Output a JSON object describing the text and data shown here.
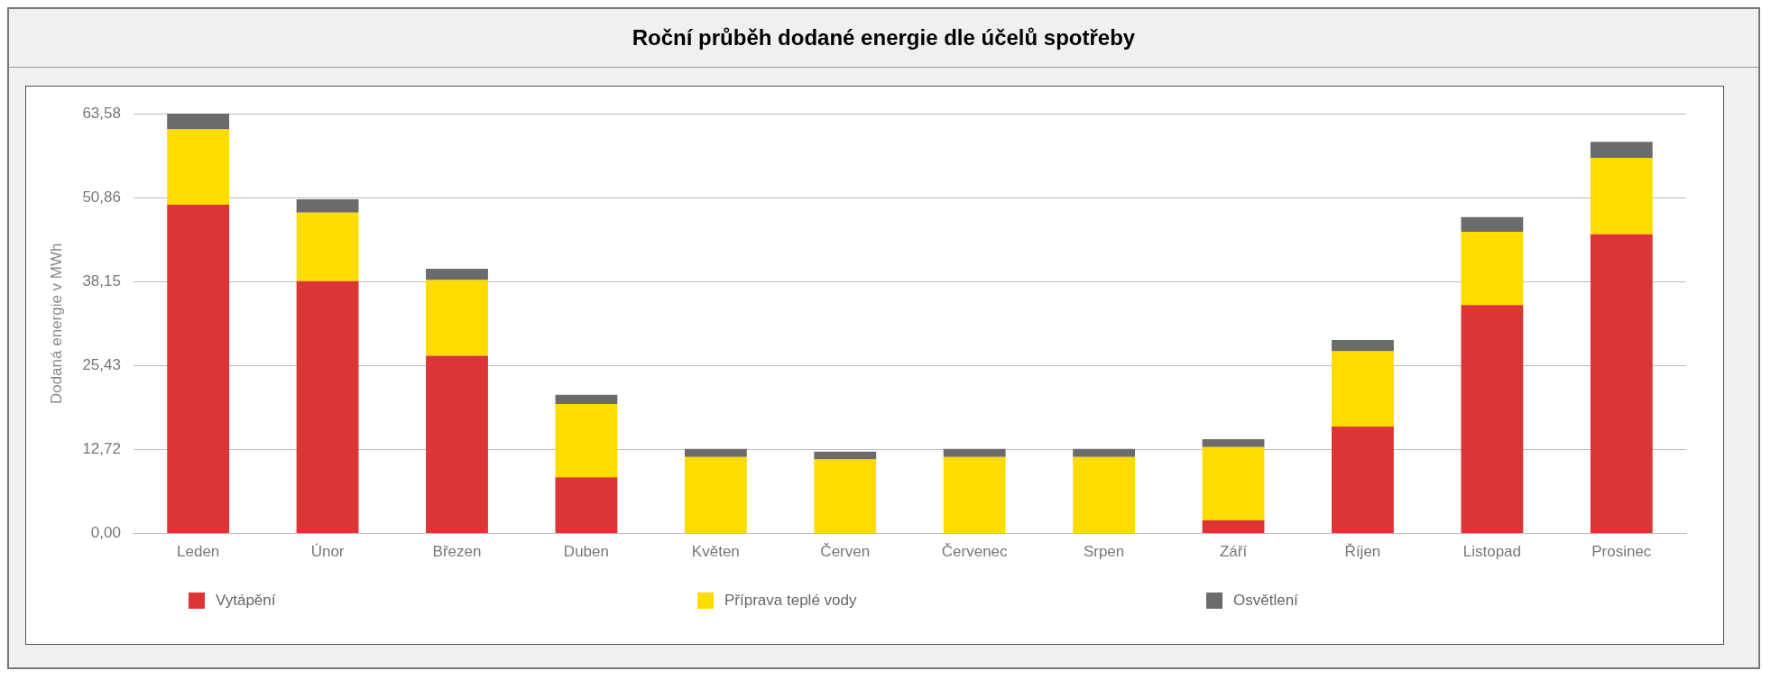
{
  "chart_data": {
    "type": "bar",
    "title": "Roční průběh dodané energie dle účelů spotřeby",
    "ylabel": "Dodaná energie v MWh",
    "categories": [
      "Leden",
      "Únor",
      "Březen",
      "Duben",
      "Květen",
      "Červen",
      "Červenec",
      "Srpen",
      "Září",
      "Říjen",
      "Listopad",
      "Prosinec"
    ],
    "series": [
      {
        "name": "Vytápění",
        "color": "#dc3535",
        "values": [
          49.8,
          38.2,
          26.9,
          8.5,
          0,
          0,
          0,
          0,
          2.0,
          16.2,
          34.6,
          45.3
        ]
      },
      {
        "name": "Příprava teplé vody",
        "color": "#ffdc00",
        "values": [
          11.4,
          10.4,
          11.5,
          11.1,
          11.6,
          11.2,
          11.6,
          11.6,
          11.1,
          11.4,
          11.1,
          11.6
        ]
      },
      {
        "name": "Osvětlení",
        "color": "#6b6b6b",
        "values": [
          2.4,
          2.0,
          1.7,
          1.4,
          1.2,
          1.2,
          1.2,
          1.2,
          1.2,
          1.7,
          2.2,
          2.4
        ]
      }
    ],
    "stacked": true,
    "ylim": [
      0,
      63.58
    ],
    "yticks": [
      {
        "value": 0,
        "label": "0,00"
      },
      {
        "value": 12.716,
        "label": "12,72"
      },
      {
        "value": 25.432,
        "label": "25,43"
      },
      {
        "value": 38.148,
        "label": "38,15"
      },
      {
        "value": 50.864,
        "label": "50,86"
      },
      {
        "value": 63.58,
        "label": "63,58"
      }
    ],
    "grid": "y",
    "legend": "bottom"
  }
}
